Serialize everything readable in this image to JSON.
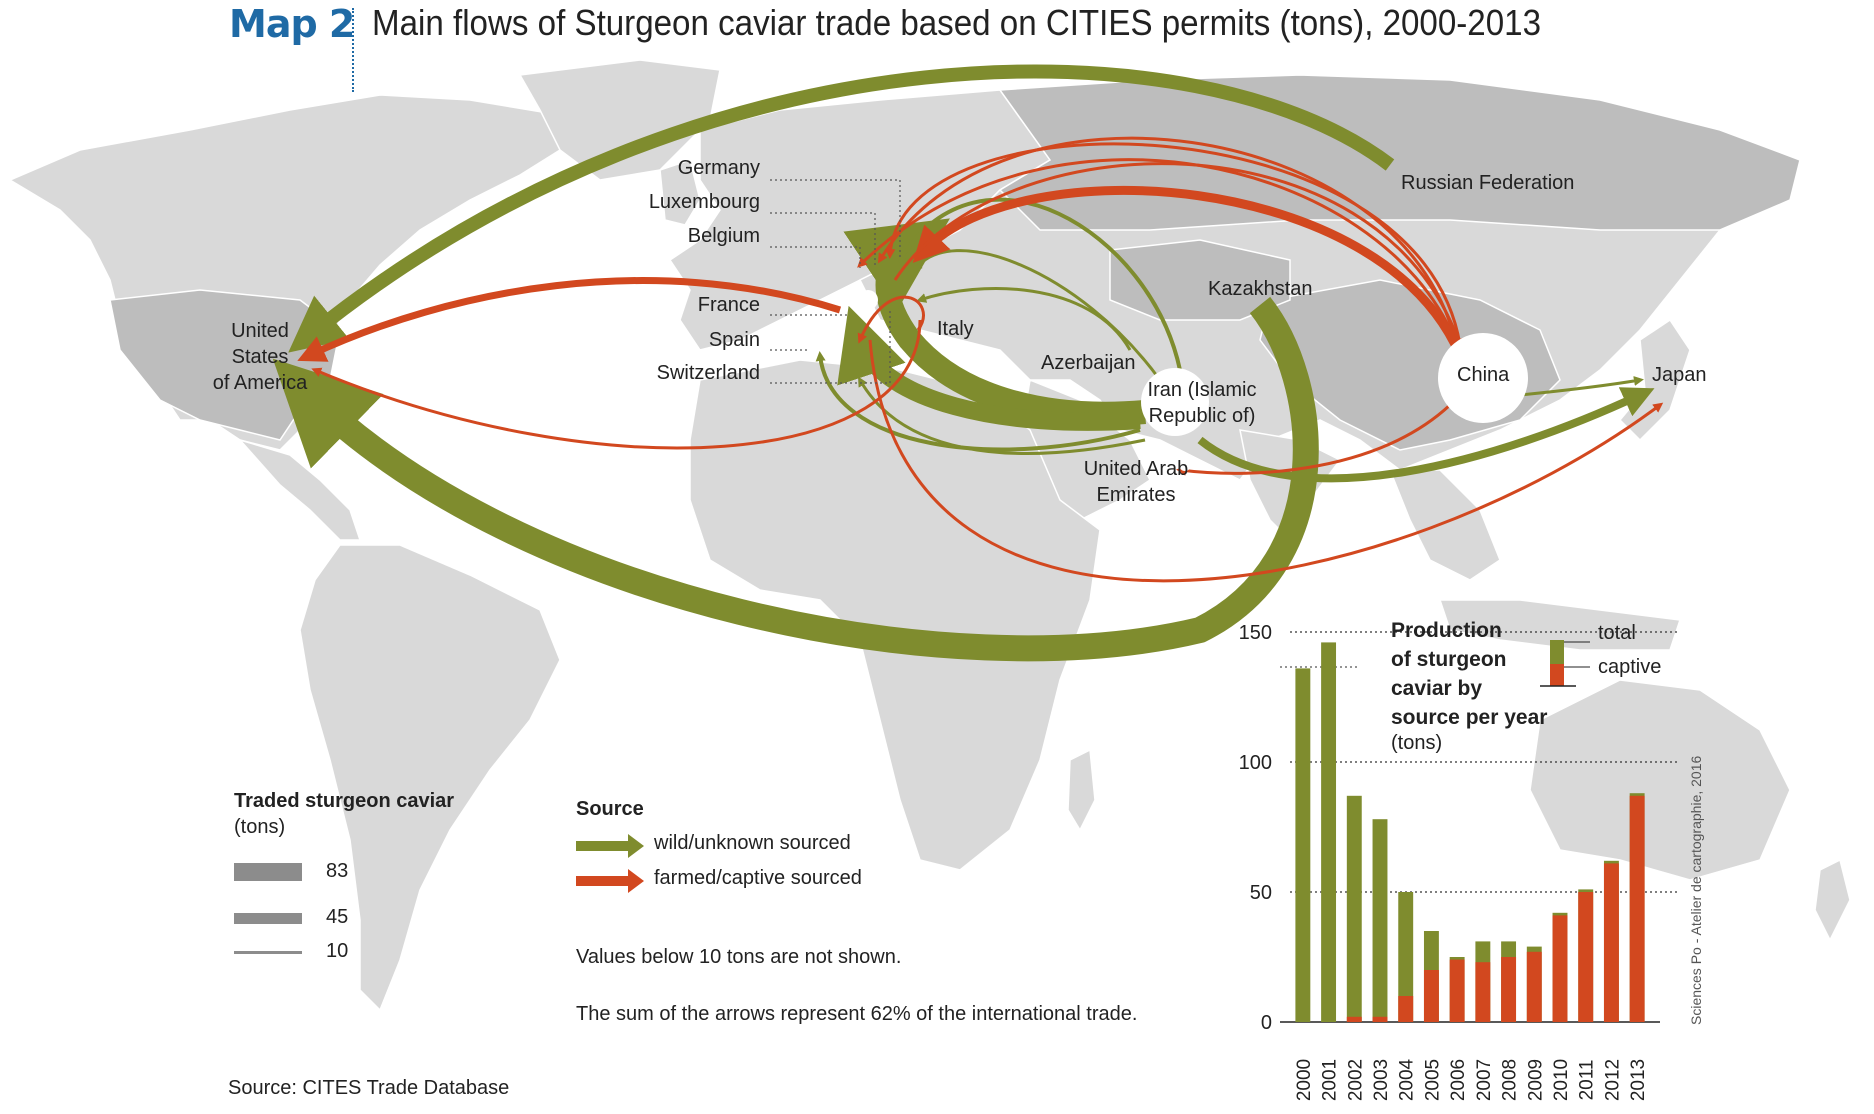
{
  "header": {
    "map_label": "Map 2",
    "title": "Main flows of Sturgeon caviar trade based on CITIES permits (tons), 2000-2013"
  },
  "countries": {
    "germany": "Germany",
    "luxembourg": "Luxembourg",
    "belgium": "Belgium",
    "france": "France",
    "spain": "Spain",
    "switzerland": "Switzerland",
    "italy": "Italy",
    "usa_line1": "United",
    "usa_line2": "States",
    "usa_line3": "of America",
    "russia": "Russian Federation",
    "kazakhstan": "Kazakhstan",
    "azerbaijan": "Azerbaijan",
    "iran_line1": "Iran (Islamic",
    "iran_line2": "Republic of)",
    "uae_line1": "United Arab",
    "uae_line2": "Emirates",
    "china": "China",
    "japan": "Japan"
  },
  "legend": {
    "size_title": "Traded sturgeon caviar",
    "size_unit": "(tons)",
    "size_values": [
      "83",
      "45",
      "10"
    ],
    "source_title": "Source",
    "wild_label": "wild/unknown sourced",
    "farmed_label": "farmed/captive sourced",
    "wild_color": "#7f8c2e",
    "farmed_color": "#d2481f",
    "note1": "Values below 10 tons are not shown.",
    "note2": "The sum of the arrows represent 62% of the international trade."
  },
  "footer": {
    "source": "Source: CITES Trade Database",
    "credit": "Sciences Po - Atelier de cartographie, 2016"
  },
  "chart_data": {
    "type": "bar",
    "title_lines": [
      "Production",
      "of sturgeon",
      "caviar by",
      "source per year"
    ],
    "unit": "(tons)",
    "legend_total": "total",
    "legend_captive": "captive",
    "categories": [
      "2000",
      "2001",
      "2002",
      "2003",
      "2004",
      "2005",
      "2006",
      "2007",
      "2008",
      "2009",
      "2010",
      "2011",
      "2012",
      "2013"
    ],
    "series": [
      {
        "name": "total",
        "values": [
          136,
          146,
          87,
          78,
          50,
          35,
          25,
          31,
          31,
          29,
          42,
          51,
          62,
          88
        ],
        "color": "#7f8c2e"
      },
      {
        "name": "captive",
        "values": [
          0,
          0,
          2,
          2,
          10,
          20,
          24,
          23,
          25,
          27,
          41,
          50,
          61,
          87
        ],
        "color": "#d2481f"
      }
    ],
    "ylim": [
      0,
      150
    ],
    "yticks": [
      "0",
      "50",
      "100",
      "150"
    ],
    "ytick_values": [
      0,
      50,
      100,
      150
    ]
  }
}
